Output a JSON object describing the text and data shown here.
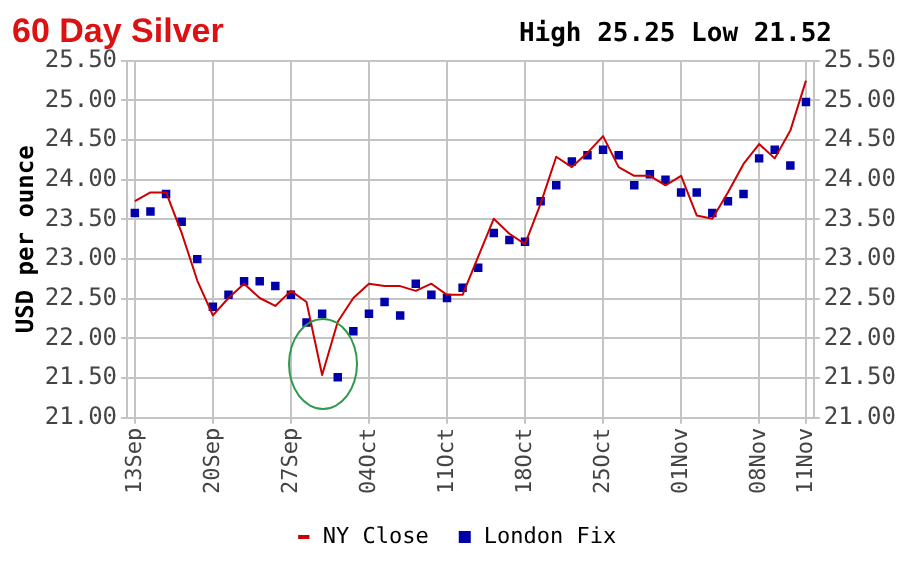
{
  "chart_data": {
    "type": "line",
    "title": "60 Day Silver",
    "ylabel": "USD per ounce",
    "annotations": [
      "High 25.25 Low 21.52"
    ],
    "categories": [
      "13Sep",
      null,
      null,
      null,
      null,
      "20Sep",
      null,
      null,
      null,
      null,
      "27Sep",
      null,
      null,
      null,
      null,
      "04Oct",
      null,
      null,
      null,
      null,
      "11Oct",
      null,
      null,
      null,
      null,
      "18Oct",
      null,
      null,
      null,
      null,
      "25Oct",
      null,
      null,
      null,
      null,
      "01Nov",
      null,
      null,
      null,
      null,
      "08Nov",
      null,
      null,
      "11Nov"
    ],
    "series": [
      {
        "name": "NY Close",
        "color": "#cc0000",
        "marker": "none",
        "values": [
          23.73,
          23.84,
          23.84,
          23.33,
          22.73,
          22.29,
          22.51,
          22.69,
          22.51,
          22.41,
          22.6,
          22.46,
          21.54,
          22.21,
          22.51,
          22.69,
          22.66,
          22.66,
          22.6,
          22.69,
          22.55,
          22.55,
          23.03,
          23.51,
          23.32,
          23.19,
          23.7,
          24.29,
          24.16,
          24.34,
          24.55,
          24.16,
          24.05,
          24.05,
          23.93,
          24.05,
          23.55,
          23.51,
          23.84,
          24.2,
          24.45,
          24.27,
          24.62,
          25.25
        ]
      },
      {
        "name": "London Fix",
        "type": "scatter",
        "color": "#0000aa",
        "marker": "square",
        "values": [
          23.58,
          23.6,
          23.82,
          23.47,
          23.0,
          22.4,
          22.55,
          22.72,
          22.72,
          22.66,
          22.55,
          22.2,
          22.31,
          21.51,
          22.09,
          22.31,
          22.46,
          22.29,
          22.69,
          22.55,
          22.51,
          22.64,
          22.89,
          23.33,
          23.24,
          23.22,
          23.73,
          23.93,
          24.23,
          24.31,
          24.38,
          24.31,
          23.93,
          24.07,
          24.0,
          23.84,
          23.84,
          23.58,
          23.73,
          23.82,
          24.27,
          24.38,
          24.18,
          24.98
        ]
      }
    ],
    "ylim": [
      21,
      25.5
    ],
    "yticks": [
      {
        "value": 21,
        "label": "21.00"
      },
      {
        "value": 21.5,
        "label": "21.50"
      },
      {
        "value": 22,
        "label": "22.00"
      },
      {
        "value": 22.5,
        "label": "22.50"
      },
      {
        "value": 23,
        "label": "23.00"
      },
      {
        "value": 23.5,
        "label": "23.50"
      },
      {
        "value": 24,
        "label": "24.00"
      },
      {
        "value": 24.5,
        "label": "24.50"
      },
      {
        "value": 25,
        "label": "25.00"
      },
      {
        "value": 25.5,
        "label": "25.50"
      }
    ],
    "y2lim": [
      21,
      25.5
    ],
    "y2ticks": [
      {
        "value": 21,
        "label": "21.00"
      },
      {
        "value": 21.5,
        "label": "21.50"
      },
      {
        "value": 22,
        "label": "22.00"
      },
      {
        "value": 22.5,
        "label": "22.50"
      },
      {
        "value": 23,
        "label": "23.00"
      },
      {
        "value": 23.5,
        "label": "23.50"
      },
      {
        "value": 24,
        "label": "24.00"
      },
      {
        "value": 24.5,
        "label": "24.50"
      },
      {
        "value": 25,
        "label": "25.00"
      },
      {
        "value": 25.5,
        "label": "25.50"
      }
    ],
    "grid": true,
    "legend": "bottom"
  }
}
